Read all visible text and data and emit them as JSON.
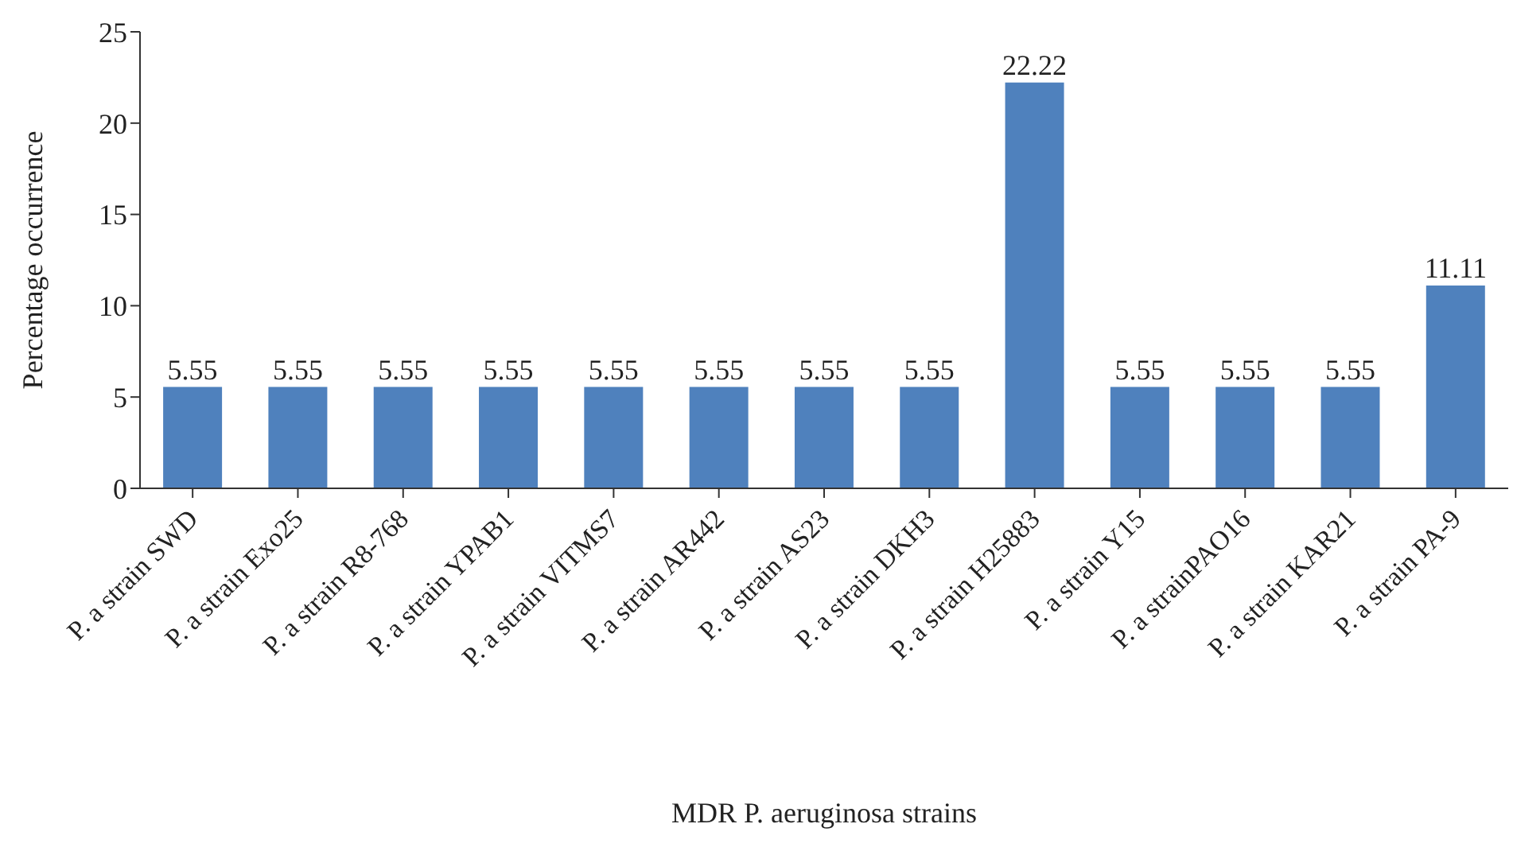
{
  "chart_data": {
    "type": "bar",
    "xlabel": "MDR P. aeruginosa strains",
    "ylabel": "Percentage occurrence",
    "categories": [
      "P. a strain SWD",
      "P. a strain Exo25",
      "P. a strain R8-768",
      "P. a strain YPAB1",
      "P. a strain VITMS7",
      "P. a strain AR442",
      "P. a strain AS23",
      "P. a strain DKH3",
      "P. a strain H25883",
      "P. a strain Y15",
      "P. a strainPAO16",
      "P. a strain KAR21",
      "P. a strain PA-9"
    ],
    "values": [
      5.55,
      5.55,
      5.55,
      5.55,
      5.55,
      5.55,
      5.55,
      5.55,
      22.22,
      5.55,
      5.55,
      5.55,
      11.11
    ],
    "data_labels": true,
    "color": "#4f81bd",
    "ylim": [
      0,
      25
    ],
    "yticks": [
      0,
      5,
      10,
      15,
      20,
      25
    ],
    "grid": false,
    "legend": false
  }
}
